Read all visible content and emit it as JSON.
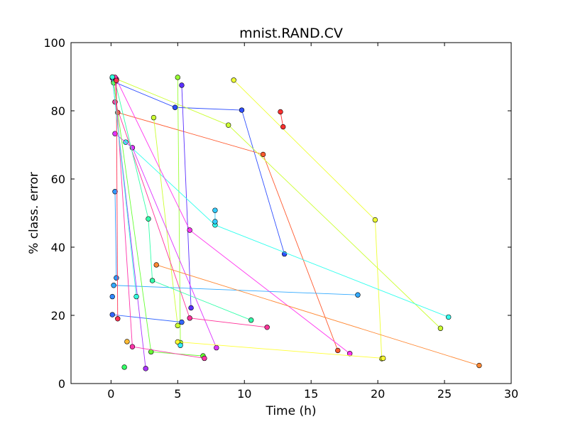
{
  "chart_data": {
    "type": "scatter",
    "title": "mnist.RAND.CV",
    "xlabel": "Time (h)",
    "ylabel": "% class. error",
    "xlim": [
      -3,
      30
    ],
    "ylim": [
      0,
      100
    ],
    "xticks": [
      0,
      5,
      10,
      15,
      20,
      25,
      30
    ],
    "yticks": [
      0,
      20,
      40,
      60,
      80,
      100
    ],
    "grid": false,
    "legend": "none",
    "series": [
      {
        "color": "#2f4fff",
        "points": [
          [
            0.2,
            88.5
          ],
          [
            4.8,
            81
          ],
          [
            9.8,
            80.2
          ],
          [
            13,
            38
          ]
        ]
      },
      {
        "color": "#ff5a2f",
        "points": [
          [
            0.5,
            79.5
          ],
          [
            11.4,
            67.2
          ],
          [
            17,
            9.7
          ]
        ]
      },
      {
        "color": "#ccff33",
        "points": [
          [
            0.3,
            89.5
          ],
          [
            8.8,
            75.8
          ],
          [
            24.7,
            16.2
          ]
        ]
      },
      {
        "color": "#ccff33",
        "points": [
          [
            3.2,
            78
          ],
          [
            5,
            17
          ]
        ]
      },
      {
        "color": "#eeff33",
        "points": [
          [
            9.2,
            89
          ],
          [
            19.8,
            48
          ],
          [
            20.3,
            7.3
          ]
        ]
      },
      {
        "color": "#ff2f2f",
        "points": [
          [
            12.7,
            79.7
          ],
          [
            12.9,
            75.3
          ]
        ]
      },
      {
        "color": "#5a2fff",
        "points": [
          [
            5.3,
            87.5
          ],
          [
            6,
            22.2
          ]
        ]
      },
      {
        "color": "#99ff33",
        "points": [
          [
            5,
            89.8
          ],
          [
            5.2,
            12
          ]
        ]
      },
      {
        "color": "#33ffee",
        "points": [
          [
            1.1,
            70.8
          ],
          [
            7.8,
            46.5
          ],
          [
            25.3,
            19.5
          ]
        ]
      },
      {
        "color": "#33ccff",
        "points": [
          [
            7.8,
            50.8
          ],
          [
            7.8,
            47.5
          ]
        ]
      },
      {
        "color": "#dd33ff",
        "points": [
          [
            0.3,
            73.3
          ],
          [
            1.6,
            69.2
          ],
          [
            7.9,
            10.5
          ]
        ]
      },
      {
        "color": "#ff33ee",
        "points": [
          [
            0.4,
            89.3
          ],
          [
            5.9,
            45
          ],
          [
            17.9,
            8.8
          ]
        ]
      },
      {
        "color": "#ff3399",
        "points": [
          [
            0.3,
            82.6
          ],
          [
            5.9,
            19.2
          ],
          [
            11.7,
            16.5
          ]
        ]
      },
      {
        "color": "#3399ff",
        "points": [
          [
            0.3,
            56.3
          ],
          [
            0.4,
            31
          ]
        ]
      },
      {
        "color": "#33aaff",
        "points": [
          [
            0.2,
            28.8
          ],
          [
            18.5,
            26
          ]
        ]
      },
      {
        "color": "#3366ff",
        "points": [
          [
            0.1,
            20.2
          ],
          [
            5.3,
            18
          ]
        ]
      },
      {
        "color": "#3388ff",
        "points": [
          [
            0.1,
            25.5
          ]
        ]
      },
      {
        "color": "#33ffaa",
        "points": [
          [
            0.3,
            88.7
          ],
          [
            2.8,
            48.3
          ],
          [
            3.1,
            30.2
          ],
          [
            10.5,
            18.6
          ]
        ]
      },
      {
        "color": "#66ff33",
        "points": [
          [
            0.2,
            88.2
          ],
          [
            3,
            9.3
          ],
          [
            6.9,
            8.1
          ]
        ]
      },
      {
        "color": "#ff8833",
        "points": [
          [
            3.4,
            34.8
          ],
          [
            27.6,
            5.3
          ]
        ]
      },
      {
        "color": "#33ff66",
        "points": [
          [
            1,
            4.8
          ]
        ]
      },
      {
        "color": "#aa33ff",
        "points": [
          [
            0.1,
            89.6
          ],
          [
            2.6,
            4.4
          ]
        ]
      },
      {
        "color": "#ff33aa",
        "points": [
          [
            0.3,
            89.8
          ],
          [
            1.6,
            10.8
          ],
          [
            7,
            7.4
          ]
        ]
      },
      {
        "color": "#ff3355",
        "points": [
          [
            0.4,
            88.9
          ],
          [
            0.5,
            19
          ]
        ]
      },
      {
        "color": "#ffbb33",
        "points": [
          [
            1.2,
            12.3
          ]
        ]
      },
      {
        "color": "#ffff33",
        "points": [
          [
            5,
            12.2
          ],
          [
            20.4,
            7.4
          ]
        ]
      },
      {
        "color": "#33ffdd",
        "points": [
          [
            0.1,
            89.9
          ],
          [
            1.9,
            25.5
          ]
        ]
      },
      {
        "color": "#33eeff",
        "points": [
          [
            5.2,
            11.2
          ]
        ]
      }
    ]
  }
}
